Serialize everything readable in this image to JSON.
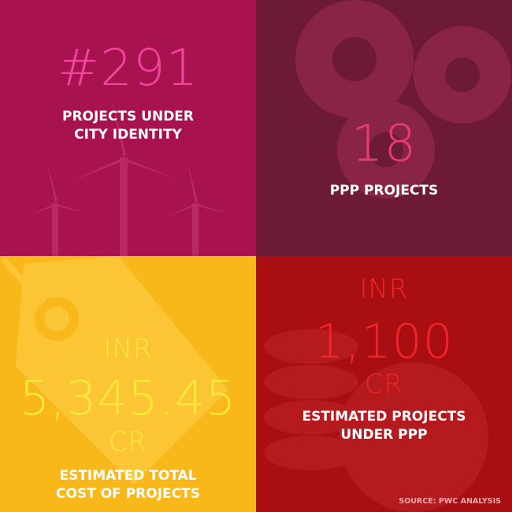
{
  "tiles": {
    "city_identity": {
      "value": "#291",
      "label_line1": "PROJECTS UNDER",
      "label_line2": "CITY IDENTITY",
      "icon": "wind-turbines-icon",
      "bg_color": "#a8124f",
      "value_color": "#f0449a"
    },
    "ppp": {
      "value": "18",
      "label": "PPP PROJECTS",
      "icon": "gears-icon",
      "bg_color": "#6c1a35",
      "value_color": "#e53b77"
    },
    "total_cost": {
      "currency": "INR",
      "value": "5,345.45",
      "unit": "CR",
      "label_line1": "ESTIMATED TOTAL",
      "label_line2": "COST OF PROJECTS",
      "icon": "price-tag-icon",
      "bg_color": "#f9b81a",
      "value_color": "#ffe93a"
    },
    "ppp_cost": {
      "currency": "INR",
      "value": "1,100",
      "unit": "CR",
      "label_line1": "ESTIMATED PROJECTS",
      "label_line2": "UNDER PPP",
      "icon": "rupee-coins-icon",
      "bg_color": "#a80e12",
      "value_color": "#f0242a"
    }
  },
  "source": "SOURCE: PWC ANALYSIS"
}
